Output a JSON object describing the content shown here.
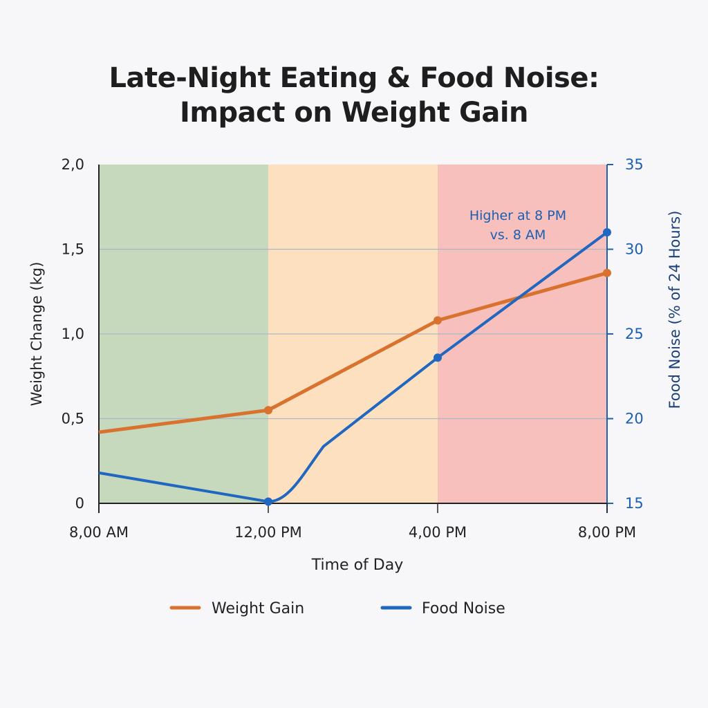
{
  "chart_data": {
    "type": "line",
    "title_line1": "Late-Night Eating & Food Noise:",
    "title_line2": "Impact on Weight Gain",
    "xlabel": "Time of Day",
    "ylabel": "Weight Change (kg)",
    "y2label": "Food Noise (% of 24 Hours)",
    "categories": [
      "8,00 AM",
      "12,00 PM",
      "4,00 PM",
      "8,00 PM"
    ],
    "ylim": [
      0,
      2.0
    ],
    "yticks": [
      0,
      0.5,
      1.0,
      1.5,
      2.0
    ],
    "ytick_labels": [
      "0",
      "0,5",
      "1,0",
      "1,5",
      "2,0"
    ],
    "y2lim": [
      15,
      35
    ],
    "y2ticks": [
      15,
      20,
      25,
      30,
      35
    ],
    "y2tick_labels": [
      "15",
      "20",
      "25",
      "30",
      "35"
    ],
    "grid": "horizontal",
    "legend_placement": "bottom",
    "bands": [
      {
        "from": "8,00 AM",
        "to": "12,00 PM",
        "color": "#c6d9bd"
      },
      {
        "from": "12,00 PM",
        "to": "4,00 PM",
        "color": "#fde0c0"
      },
      {
        "from": "4,00 PM",
        "to": "8,00 PM",
        "color": "#f8c0bc"
      }
    ],
    "series": [
      {
        "name": "Weight Gain",
        "axis": "left",
        "color": "#d9712f",
        "values": [
          0.42,
          0.55,
          1.08,
          1.36
        ]
      },
      {
        "name": "Food Noise",
        "axis": "right",
        "color": "#1f67c0",
        "values": [
          16.8,
          15.1,
          23.6,
          31.0
        ]
      }
    ],
    "annotation": {
      "line1": "Higher at 8 PM",
      "line2": "vs. 8 AM"
    }
  }
}
